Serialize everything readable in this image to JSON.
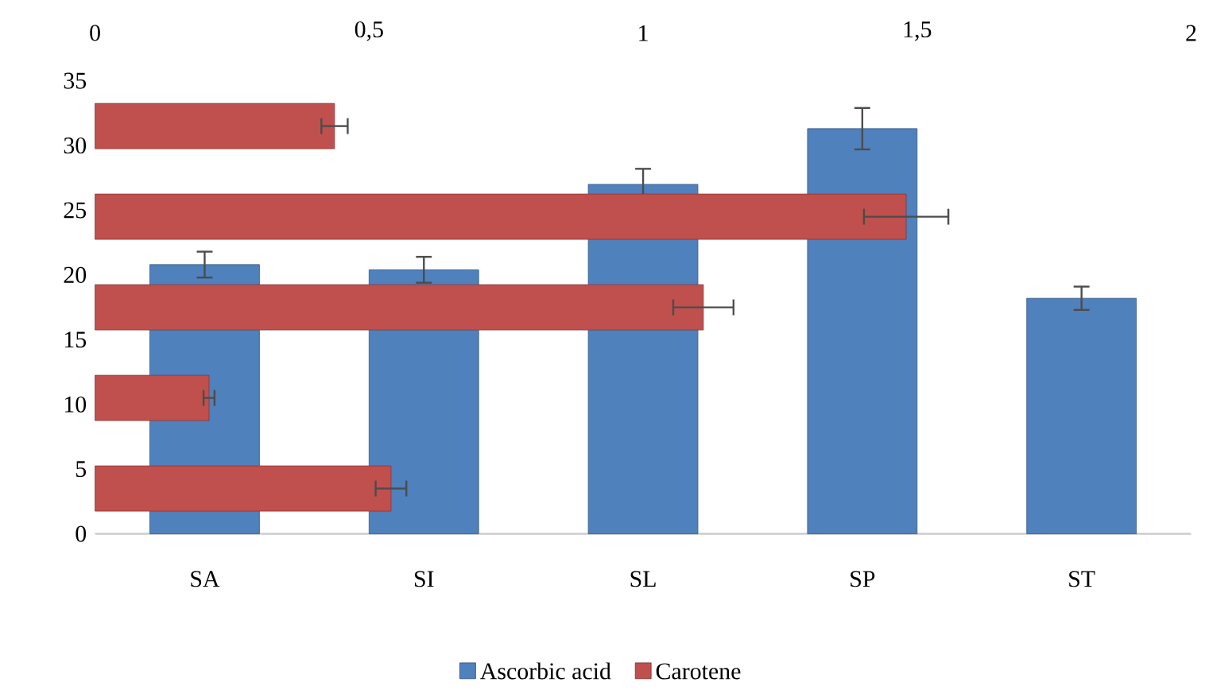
{
  "chart_data": [
    {
      "type": "bar",
      "categories": [
        "SA",
        "SI",
        "SL",
        "SP",
        "ST"
      ],
      "ylim": [
        0,
        35
      ],
      "yticks": [
        0,
        5,
        10,
        15,
        20,
        25,
        30,
        35
      ],
      "legend": "bottom",
      "series": [
        {
          "name": "Ascorbic acid",
          "color": "#4f81bd",
          "values": [
            20.8,
            20.4,
            27.0,
            31.3,
            18.2
          ],
          "errors": [
            1.0,
            1.0,
            1.2,
            1.6,
            0.9
          ]
        }
      ]
    },
    {
      "type": "bar",
      "orientation": "horizontal",
      "categories": [
        null,
        null,
        null,
        null,
        null
      ],
      "xlim": [
        0,
        2
      ],
      "xticks": [
        0,
        {
          "value": 0.5,
          "label": "0,5"
        },
        1,
        {
          "value": 1.5,
          "label": "1,5"
        },
        2
      ],
      "legend": "bottom",
      "series": [
        {
          "name": "Carotene",
          "color": "#c0504d",
          "values": [
            0.437,
            1.48,
            1.11,
            0.208,
            0.54
          ],
          "errors": [
            0.024,
            0.077,
            0.055,
            0.01,
            0.028
          ]
        }
      ]
    }
  ]
}
